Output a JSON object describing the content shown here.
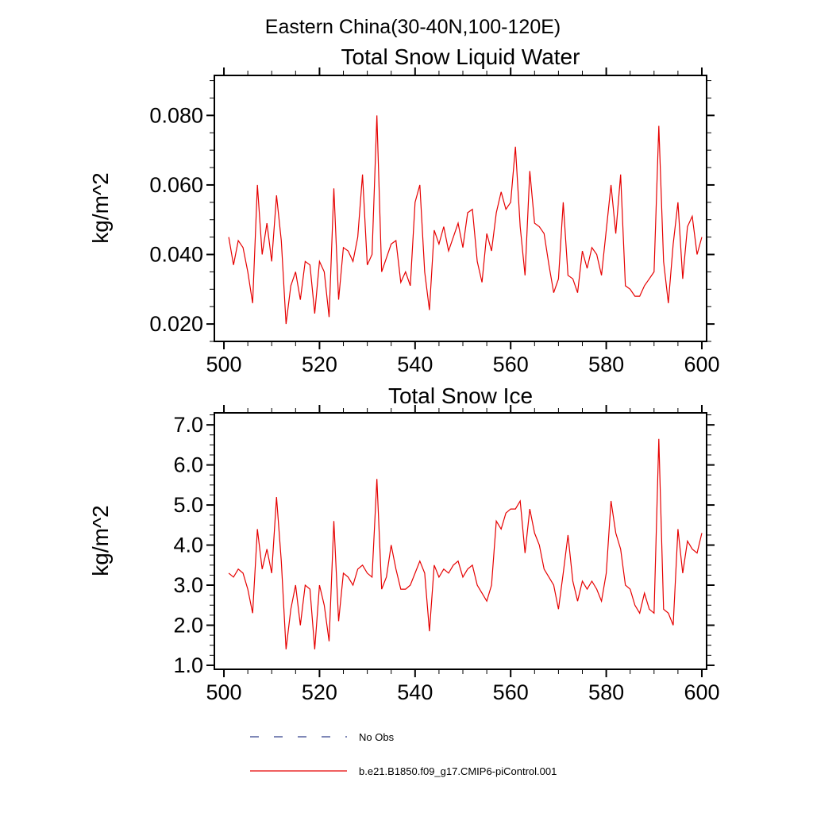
{
  "main_title": "Eastern China(30-40N,100-120E)",
  "legend": {
    "items": [
      {
        "label": "No Obs",
        "color": "#33408c",
        "style": "dashed"
      },
      {
        "label": "b.e21.B1850.f09_g17.CMIP6-piControl.001",
        "color": "#e60000",
        "style": "solid"
      }
    ]
  },
  "chart_data": [
    {
      "type": "line",
      "title": "Total Snow Liquid Water",
      "xlabel": "",
      "ylabel": "kg/m^2",
      "xlim": [
        498,
        601
      ],
      "ylim": [
        0.015,
        0.0915
      ],
      "xticks": [
        500,
        520,
        540,
        560,
        580,
        600
      ],
      "xtick_labels": [
        "500",
        "520",
        "540",
        "560",
        "580",
        "600"
      ],
      "x_minor_step": 5,
      "yticks": [
        0.02,
        0.04,
        0.06,
        0.08
      ],
      "ytick_labels": [
        "0.020",
        "0.040",
        "0.060",
        "0.080"
      ],
      "y_minor_step": 0.005,
      "line_color": "#e60000",
      "grid": false,
      "x": [
        501,
        502,
        503,
        504,
        505,
        506,
        507,
        508,
        509,
        510,
        511,
        512,
        513,
        514,
        515,
        516,
        517,
        518,
        519,
        520,
        521,
        522,
        523,
        524,
        525,
        526,
        527,
        528,
        529,
        530,
        531,
        532,
        533,
        534,
        535,
        536,
        537,
        538,
        539,
        540,
        541,
        542,
        543,
        544,
        545,
        546,
        547,
        548,
        549,
        550,
        551,
        552,
        553,
        554,
        555,
        556,
        557,
        558,
        559,
        560,
        561,
        562,
        563,
        564,
        565,
        566,
        567,
        568,
        569,
        570,
        571,
        572,
        573,
        574,
        575,
        576,
        577,
        578,
        579,
        580,
        581,
        582,
        583,
        584,
        585,
        586,
        587,
        588,
        589,
        590,
        591,
        592,
        593,
        594,
        595,
        596,
        597,
        598,
        599,
        600
      ],
      "values": [
        0.045,
        0.037,
        0.044,
        0.042,
        0.035,
        0.026,
        0.06,
        0.04,
        0.049,
        0.038,
        0.057,
        0.044,
        0.02,
        0.031,
        0.035,
        0.027,
        0.038,
        0.037,
        0.023,
        0.038,
        0.035,
        0.022,
        0.059,
        0.027,
        0.042,
        0.041,
        0.038,
        0.045,
        0.063,
        0.037,
        0.04,
        0.08,
        0.035,
        0.039,
        0.043,
        0.044,
        0.032,
        0.035,
        0.031,
        0.055,
        0.06,
        0.035,
        0.024,
        0.047,
        0.043,
        0.048,
        0.041,
        0.045,
        0.049,
        0.042,
        0.052,
        0.053,
        0.038,
        0.032,
        0.046,
        0.041,
        0.052,
        0.058,
        0.053,
        0.055,
        0.071,
        0.048,
        0.034,
        0.064,
        0.049,
        0.048,
        0.046,
        0.037,
        0.029,
        0.033,
        0.055,
        0.034,
        0.033,
        0.029,
        0.041,
        0.036,
        0.042,
        0.04,
        0.034,
        0.047,
        0.06,
        0.046,
        0.063,
        0.031,
        0.03,
        0.028,
        0.028,
        0.031,
        0.033,
        0.035,
        0.077,
        0.038,
        0.026,
        0.043,
        0.055,
        0.033,
        0.048,
        0.051,
        0.04,
        0.045
      ]
    },
    {
      "type": "line",
      "title": "Total Snow Ice",
      "xlabel": "",
      "ylabel": "kg/m^2",
      "xlim": [
        498,
        601
      ],
      "ylim": [
        0.9,
        7.3
      ],
      "xticks": [
        500,
        520,
        540,
        560,
        580,
        600
      ],
      "xtick_labels": [
        "500",
        "520",
        "540",
        "560",
        "580",
        "600"
      ],
      "x_minor_step": 5,
      "yticks": [
        1,
        2,
        3,
        4,
        5,
        6,
        7
      ],
      "ytick_labels": [
        "1.0",
        "2.0",
        "3.0",
        "4.0",
        "5.0",
        "6.0",
        "7.0"
      ],
      "y_minor_step": 0.25,
      "line_color": "#e60000",
      "grid": false,
      "x": [
        501,
        502,
        503,
        504,
        505,
        506,
        507,
        508,
        509,
        510,
        511,
        512,
        513,
        514,
        515,
        516,
        517,
        518,
        519,
        520,
        521,
        522,
        523,
        524,
        525,
        526,
        527,
        528,
        529,
        530,
        531,
        532,
        533,
        534,
        535,
        536,
        537,
        538,
        539,
        540,
        541,
        542,
        543,
        544,
        545,
        546,
        547,
        548,
        549,
        550,
        551,
        552,
        553,
        554,
        555,
        556,
        557,
        558,
        559,
        560,
        561,
        562,
        563,
        564,
        565,
        566,
        567,
        568,
        569,
        570,
        571,
        572,
        573,
        574,
        575,
        576,
        577,
        578,
        579,
        580,
        581,
        582,
        583,
        584,
        585,
        586,
        587,
        588,
        589,
        590,
        591,
        592,
        593,
        594,
        595,
        596,
        597,
        598,
        599,
        600
      ],
      "values": [
        3.3,
        3.2,
        3.4,
        3.3,
        2.9,
        2.3,
        4.4,
        3.4,
        3.9,
        3.3,
        5.2,
        3.6,
        1.4,
        2.4,
        3.0,
        2.0,
        3.0,
        2.9,
        1.4,
        3.0,
        2.5,
        1.6,
        4.6,
        2.1,
        3.3,
        3.2,
        3.0,
        3.4,
        3.5,
        3.3,
        3.2,
        5.65,
        2.9,
        3.2,
        4.0,
        3.4,
        2.9,
        2.9,
        3.0,
        3.3,
        3.6,
        3.3,
        1.85,
        3.5,
        3.2,
        3.4,
        3.3,
        3.5,
        3.6,
        3.2,
        3.4,
        3.5,
        3.0,
        2.8,
        2.6,
        3.0,
        4.6,
        4.4,
        4.8,
        4.9,
        4.9,
        5.1,
        3.8,
        4.9,
        4.3,
        4.0,
        3.4,
        3.2,
        3.0,
        2.4,
        3.3,
        4.25,
        3.1,
        2.6,
        3.1,
        2.9,
        3.1,
        2.9,
        2.6,
        3.3,
        5.1,
        4.3,
        3.9,
        3.0,
        2.9,
        2.5,
        2.3,
        2.8,
        2.4,
        2.3,
        6.65,
        2.4,
        2.3,
        2.0,
        4.4,
        3.3,
        4.1,
        3.9,
        3.8,
        4.3
      ]
    }
  ]
}
